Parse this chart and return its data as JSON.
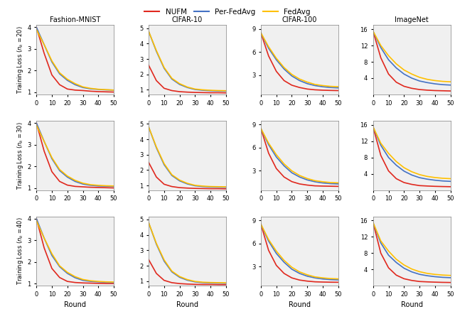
{
  "legend_labels": [
    "NUFM",
    "Per-FedAvg",
    "FedAvg"
  ],
  "legend_colors": [
    "#e0281e",
    "#4472c4",
    "#ffc000"
  ],
  "col_titles": [
    "Fashion-MNIST",
    "CIFAR-10",
    "CIFAR-100",
    "ImageNet"
  ],
  "row_labels": [
    "$(n_k = 20)$",
    "$(n_k = 30)$",
    "$(n_k = 40)$"
  ],
  "ylabel": "Training Loss",
  "xlabel": "Round",
  "x_ticks": [
    0,
    10,
    20,
    30,
    40,
    50
  ],
  "datasets": {
    "Fashion-MNIST": {
      "ylim": [
        0.9,
        4.1
      ],
      "yticks": [
        1,
        2,
        3,
        4
      ],
      "nk20": {
        "NUFM": [
          4.0,
          2.8,
          1.8,
          1.35,
          1.15,
          1.1,
          1.08,
          1.05,
          1.03,
          1.02,
          1.01
        ],
        "Per-FedAvg": [
          4.0,
          3.2,
          2.4,
          1.85,
          1.55,
          1.35,
          1.22,
          1.16,
          1.13,
          1.11,
          1.1
        ],
        "FedAvg": [
          3.9,
          3.2,
          2.45,
          1.9,
          1.6,
          1.4,
          1.25,
          1.18,
          1.14,
          1.12,
          1.1
        ]
      },
      "nk30": {
        "NUFM": [
          4.0,
          2.7,
          1.75,
          1.3,
          1.13,
          1.07,
          1.05,
          1.03,
          1.02,
          1.01,
          1.0
        ],
        "Per-FedAvg": [
          4.0,
          3.15,
          2.35,
          1.8,
          1.5,
          1.3,
          1.18,
          1.12,
          1.09,
          1.08,
          1.07
        ],
        "FedAvg": [
          3.9,
          3.15,
          2.4,
          1.85,
          1.55,
          1.35,
          1.22,
          1.15,
          1.12,
          1.1,
          1.09
        ]
      },
      "nk40": {
        "NUFM": [
          4.0,
          2.65,
          1.7,
          1.28,
          1.1,
          1.05,
          1.03,
          1.02,
          1.01,
          1.0,
          1.0
        ],
        "Per-FedAvg": [
          4.0,
          3.1,
          2.3,
          1.78,
          1.47,
          1.27,
          1.15,
          1.1,
          1.08,
          1.06,
          1.05
        ],
        "FedAvg": [
          3.9,
          3.1,
          2.38,
          1.82,
          1.52,
          1.32,
          1.19,
          1.13,
          1.1,
          1.08,
          1.07
        ]
      }
    },
    "CIFAR-10": {
      "ylim": [
        0.7,
        5.2
      ],
      "yticks": [
        1,
        2,
        3,
        4,
        5
      ],
      "nk20": {
        "NUFM": [
          2.6,
          1.6,
          1.1,
          0.95,
          0.88,
          0.85,
          0.83,
          0.82,
          0.81,
          0.81,
          0.8
        ],
        "Per-FedAvg": [
          4.8,
          3.5,
          2.4,
          1.7,
          1.35,
          1.15,
          1.02,
          0.97,
          0.94,
          0.92,
          0.91
        ],
        "FedAvg": [
          4.8,
          3.55,
          2.45,
          1.75,
          1.4,
          1.18,
          1.05,
          1.0,
          0.97,
          0.95,
          0.94
        ]
      },
      "nk30": {
        "NUFM": [
          2.5,
          1.55,
          1.08,
          0.93,
          0.86,
          0.83,
          0.81,
          0.8,
          0.79,
          0.79,
          0.78
        ],
        "Per-FedAvg": [
          4.8,
          3.45,
          2.35,
          1.65,
          1.3,
          1.1,
          0.98,
          0.93,
          0.9,
          0.89,
          0.88
        ],
        "FedAvg": [
          4.8,
          3.5,
          2.42,
          1.7,
          1.35,
          1.14,
          1.01,
          0.96,
          0.93,
          0.92,
          0.91
        ]
      },
      "nk40": {
        "NUFM": [
          2.4,
          1.5,
          1.05,
          0.9,
          0.84,
          0.81,
          0.79,
          0.78,
          0.78,
          0.77,
          0.77
        ],
        "Per-FedAvg": [
          4.8,
          3.4,
          2.3,
          1.6,
          1.25,
          1.06,
          0.95,
          0.9,
          0.88,
          0.87,
          0.86
        ],
        "FedAvg": [
          4.8,
          3.45,
          2.38,
          1.65,
          1.3,
          1.1,
          0.98,
          0.93,
          0.91,
          0.9,
          0.89
        ]
      }
    },
    "CIFAR-100": {
      "ylim": [
        0.5,
        9.5
      ],
      "yticks": [
        3,
        6,
        9
      ],
      "nk20": {
        "NUFM": [
          8.5,
          5.5,
          3.5,
          2.3,
          1.7,
          1.4,
          1.2,
          1.1,
          1.05,
          1.02,
          1.0
        ],
        "Per-FedAvg": [
          8.5,
          6.5,
          5.0,
          3.8,
          2.9,
          2.3,
          1.9,
          1.65,
          1.5,
          1.4,
          1.35
        ],
        "FedAvg": [
          8.5,
          6.7,
          5.2,
          4.0,
          3.1,
          2.5,
          2.1,
          1.8,
          1.65,
          1.55,
          1.5
        ]
      },
      "nk30": {
        "NUFM": [
          8.5,
          5.3,
          3.3,
          2.2,
          1.6,
          1.3,
          1.15,
          1.05,
          1.02,
          1.0,
          0.98
        ],
        "Per-FedAvg": [
          8.5,
          6.4,
          4.8,
          3.65,
          2.75,
          2.2,
          1.82,
          1.58,
          1.43,
          1.34,
          1.3
        ],
        "FedAvg": [
          8.5,
          6.6,
          5.1,
          3.9,
          3.0,
          2.4,
          2.0,
          1.72,
          1.58,
          1.48,
          1.44
        ]
      },
      "nk40": {
        "NUFM": [
          8.5,
          5.1,
          3.15,
          2.1,
          1.52,
          1.24,
          1.1,
          1.01,
          0.98,
          0.96,
          0.95
        ],
        "Per-FedAvg": [
          8.5,
          6.3,
          4.7,
          3.55,
          2.65,
          2.1,
          1.74,
          1.52,
          1.38,
          1.3,
          1.26
        ],
        "FedAvg": [
          8.5,
          6.5,
          5.0,
          3.8,
          2.9,
          2.3,
          1.92,
          1.65,
          1.52,
          1.43,
          1.39
        ]
      }
    },
    "ImageNet": {
      "ylim": [
        0,
        17
      ],
      "yticks": [
        4,
        8,
        12,
        16
      ],
      "nk20": {
        "NUFM": [
          15.5,
          9.0,
          5.0,
          3.0,
          2.0,
          1.5,
          1.2,
          1.05,
          0.95,
          0.9,
          0.85
        ],
        "Per-FedAvg": [
          15.5,
          11.5,
          8.5,
          6.5,
          5.0,
          4.0,
          3.3,
          2.9,
          2.6,
          2.4,
          2.3
        ],
        "FedAvg": [
          15.5,
          12.0,
          9.5,
          7.5,
          6.0,
          5.0,
          4.2,
          3.7,
          3.4,
          3.2,
          3.1
        ]
      },
      "nk30": {
        "NUFM": [
          15.5,
          8.5,
          4.7,
          2.8,
          1.85,
          1.4,
          1.1,
          1.0,
          0.92,
          0.87,
          0.83
        ],
        "Per-FedAvg": [
          15.5,
          11.0,
          8.0,
          6.1,
          4.65,
          3.7,
          3.05,
          2.68,
          2.42,
          2.24,
          2.14
        ],
        "FedAvg": [
          15.5,
          11.5,
          9.0,
          7.0,
          5.5,
          4.5,
          3.8,
          3.35,
          3.08,
          2.9,
          2.8
        ]
      },
      "nk40": {
        "NUFM": [
          15.5,
          8.0,
          4.4,
          2.6,
          1.72,
          1.3,
          1.04,
          0.95,
          0.88,
          0.83,
          0.8
        ],
        "Per-FedAvg": [
          15.5,
          10.5,
          7.5,
          5.7,
          4.3,
          3.4,
          2.8,
          2.46,
          2.22,
          2.06,
          1.97
        ],
        "FedAvg": [
          15.5,
          11.0,
          8.5,
          6.5,
          5.1,
          4.1,
          3.45,
          3.03,
          2.78,
          2.62,
          2.53
        ]
      }
    }
  }
}
